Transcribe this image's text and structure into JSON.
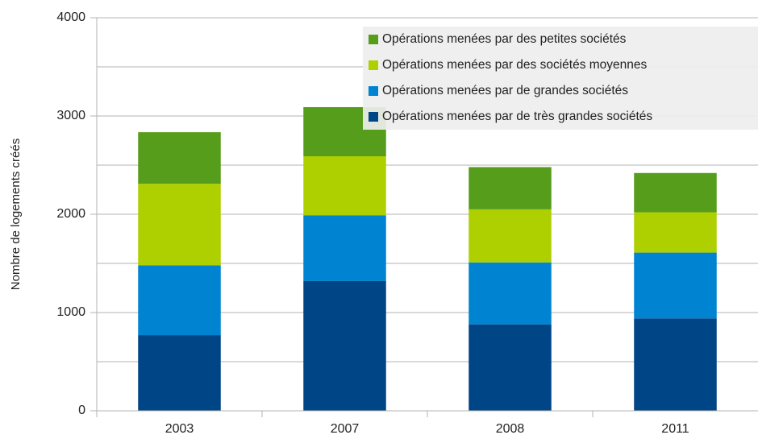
{
  "chart_data": {
    "type": "stacked_bar",
    "y_label": "Nombre de logements créés",
    "categories": [
      "2003",
      "2007",
      "2008",
      "2011"
    ],
    "series": [
      {
        "name": "Opérations menées par de très grandes sociétés",
        "color": "#004586",
        "values": [
          770,
          1320,
          880,
          940
        ]
      },
      {
        "name": "Opérations menées par de grandes sociétés",
        "color": "#0084d1",
        "values": [
          710,
          670,
          630,
          670
        ]
      },
      {
        "name": "Opérations menées par des sociétés moyennes",
        "color": "#aecf00",
        "values": [
          830,
          600,
          540,
          410
        ]
      },
      {
        "name": "Opérations menées par des petites sociétés",
        "color": "#579d1c",
        "values": [
          525,
          500,
          430,
          400
        ]
      }
    ],
    "ylim": [
      0,
      4000
    ],
    "yticks": [
      0,
      1000,
      2000,
      3000,
      4000
    ],
    "minor_yticks": [
      500,
      1500,
      2500,
      3500
    ],
    "grid": true,
    "legend": "top-right"
  }
}
